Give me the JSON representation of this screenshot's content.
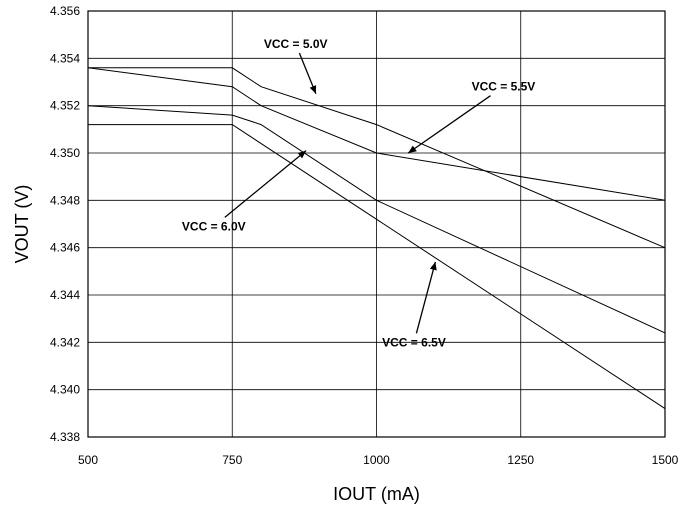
{
  "chart_data": {
    "type": "line",
    "xlabel": "IOUT (mA)",
    "ylabel": "VOUT (V)",
    "xlim": [
      500,
      1500
    ],
    "ylim": [
      4.338,
      4.356
    ],
    "x_ticks": [
      500,
      750,
      1000,
      1250,
      1500
    ],
    "x_tick_labels": [
      "500",
      "750",
      "1000",
      "1250",
      "1500"
    ],
    "y_ticks": [
      4.338,
      4.34,
      4.342,
      4.344,
      4.346,
      4.348,
      4.35,
      4.352,
      4.354,
      4.356
    ],
    "y_tick_labels": [
      "4.338",
      "4.340",
      "4.342",
      "4.344",
      "4.346",
      "4.348",
      "4.350",
      "4.352",
      "4.354",
      "4.356"
    ],
    "grid": true,
    "series": [
      {
        "name": "VCC = 5.0V",
        "x": [
          500,
          750,
          800,
          1000,
          1500
        ],
        "y": [
          4.3536,
          4.3536,
          4.3528,
          4.3512,
          4.346
        ]
      },
      {
        "name": "VCC = 5.5V",
        "x": [
          500,
          750,
          800,
          1000,
          1500
        ],
        "y": [
          4.3536,
          4.3528,
          4.352,
          4.35,
          4.348
        ]
      },
      {
        "name": "VCC = 6.0V",
        "x": [
          500,
          750,
          800,
          1000,
          1500
        ],
        "y": [
          4.352,
          4.3516,
          4.3512,
          4.348,
          4.3424
        ]
      },
      {
        "name": "VCC = 6.5V",
        "x": [
          500,
          750,
          1500
        ],
        "y": [
          4.3512,
          4.3512,
          4.3392
        ]
      }
    ],
    "annotations": [
      {
        "text": "VCC = 5.0V",
        "text_x": 860,
        "text_y": 4.3546,
        "arrow_x": 895,
        "arrow_y": 4.3525
      },
      {
        "text": "VCC = 5.5V",
        "text_x": 1220,
        "text_y": 4.3528,
        "arrow_x": 1055,
        "arrow_y": 4.35
      },
      {
        "text": "VCC = 6.0V",
        "text_x": 718,
        "text_y": 4.3469,
        "arrow_x": 878,
        "arrow_y": 4.3501
      },
      {
        "text": "VCC = 6.5V",
        "text_x": 1065,
        "text_y": 4.342,
        "arrow_x": 1102,
        "arrow_y": 4.3454
      }
    ]
  }
}
